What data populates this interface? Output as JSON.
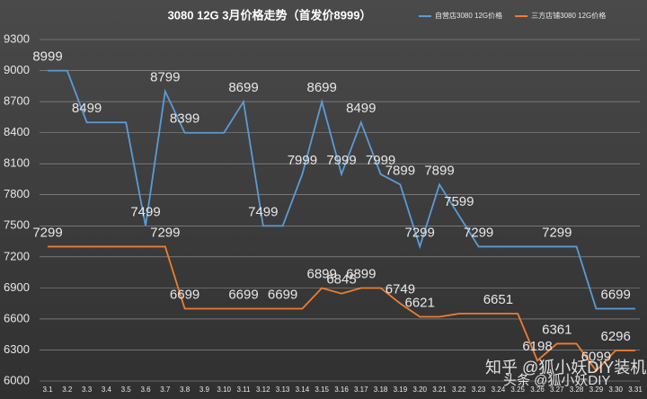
{
  "chart_data": {
    "type": "line",
    "title": "3080 12G 3月价格走势（首发价8999）",
    "categories": [
      "3.1",
      "3.2",
      "3.3",
      "3.4",
      "3.5",
      "3.6",
      "3.7",
      "3.8",
      "3.9",
      "3.10",
      "3.11",
      "3.12",
      "3.13",
      "3.14",
      "3.15",
      "3.16",
      "3.17",
      "3.18",
      "3.19",
      "3.20",
      "3.21",
      "3.22",
      "3.23",
      "3.24",
      "3.25",
      "3.26",
      "3.27",
      "3.28",
      "3.29",
      "3.30",
      "3.31"
    ],
    "series": [
      {
        "name": "自营店3080 12G价格",
        "color": "#5b9bd5",
        "values": [
          8999,
          8999,
          8499,
          8499,
          8499,
          7499,
          8799,
          8399,
          8399,
          8399,
          8699,
          7499,
          7499,
          7999,
          8699,
          7999,
          8499,
          7999,
          7899,
          7299,
          7899,
          7599,
          7299,
          7299,
          7299,
          7299,
          7299,
          7299,
          6699,
          6699,
          6699
        ],
        "value_labels": [
          "8999",
          null,
          "8499",
          null,
          null,
          "7499",
          "8799",
          "8399",
          null,
          null,
          "8699",
          "7499",
          null,
          "7999",
          "8699",
          "7999",
          "8499",
          "7999",
          "7899",
          "7299",
          "7899",
          "7599",
          "7299",
          null,
          null,
          null,
          "7299",
          null,
          null,
          "6699",
          null
        ]
      },
      {
        "name": "三方店铺3080 12G价格",
        "color": "#ed7d31",
        "values": [
          7299,
          7299,
          7299,
          7299,
          7299,
          7299,
          7299,
          6699,
          6699,
          6699,
          6699,
          6699,
          6699,
          6699,
          6899,
          6845,
          6899,
          6899,
          6749,
          6621,
          6621,
          6651,
          6651,
          6651,
          6651,
          6198,
          6361,
          6361,
          6099,
          6296,
          6296
        ],
        "value_labels": [
          "7299",
          null,
          null,
          null,
          null,
          null,
          "7299",
          "6699",
          null,
          null,
          "6699",
          null,
          "6699",
          null,
          "6899",
          "6845",
          "6899",
          null,
          "6749",
          "6621",
          null,
          null,
          null,
          "6651",
          null,
          "6198",
          "6361",
          null,
          "6099",
          "6296",
          null
        ]
      }
    ],
    "ylim": [
      6000,
      9300
    ],
    "yticks": [
      6000,
      6300,
      6600,
      6900,
      7200,
      7500,
      7800,
      8100,
      8400,
      8700,
      9000,
      9300
    ],
    "grid": true,
    "legend": "top-right",
    "watermarks": [
      "知乎 @狐小妖DIY装机",
      "头条 @狐小妖DIY"
    ]
  }
}
